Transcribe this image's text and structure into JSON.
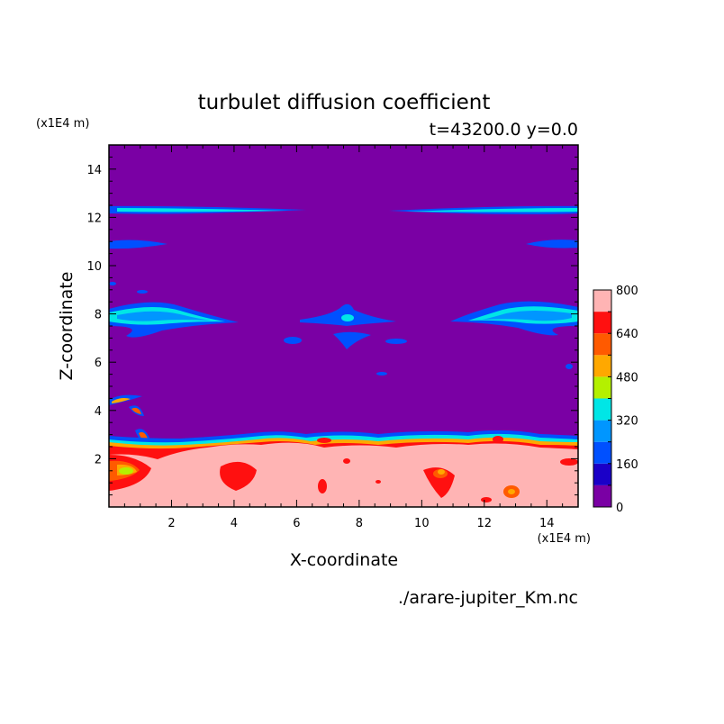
{
  "chart_data": {
    "type": "heatmap",
    "title": "turbulet diffusion coefficient",
    "subtitle": "t=43200.0 y=0.0",
    "xlabel": "X-coordinate",
    "ylabel": "Z-coordinate",
    "x_unit": "(x1E4 m)",
    "y_unit": "(x1E4 m)",
    "xlim": [
      0,
      15
    ],
    "ylim": [
      0,
      15
    ],
    "x_ticks": [
      "2",
      "4",
      "6",
      "8",
      "10",
      "12",
      "14"
    ],
    "y_ticks": [
      "2",
      "4",
      "6",
      "8",
      "10",
      "12",
      "14"
    ],
    "colorbar": {
      "levels": [
        0,
        80,
        160,
        240,
        320,
        400,
        480,
        560,
        640,
        720,
        800
      ],
      "labels": [
        "0",
        "160",
        "320",
        "480",
        "640",
        "800"
      ],
      "colors": [
        "#7a00a4",
        "#1a00c8",
        "#0050ff",
        "#0096ff",
        "#00e6e6",
        "#b4f000",
        "#ffa800",
        "#ff5a00",
        "#ff1010",
        "#ffb4b4"
      ]
    },
    "footer": "./arare-jupiter_Km.nc"
  }
}
